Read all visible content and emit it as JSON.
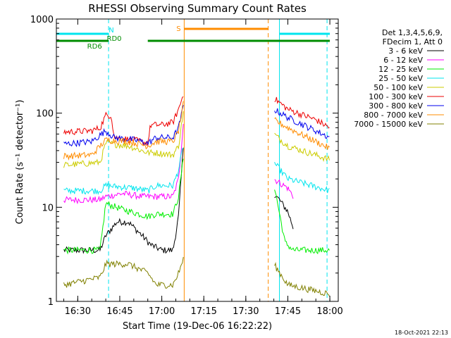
{
  "chart_data": {
    "type": "line",
    "title": "RHESSI Observing Summary Count Rates",
    "xlabel": "Start Time (19-Dec-06 16:22:22)",
    "ylabel": "Count Rate (s⁻¹ detector⁻¹)",
    "y_scale": "log",
    "xlim": [
      "16:22:22",
      "18:03:00"
    ],
    "ylim": [
      1,
      1000
    ],
    "x_ticks": [
      "16:30",
      "16:45",
      "17:00",
      "17:15",
      "17:30",
      "17:45",
      "18:00"
    ],
    "y_ticks": [
      "1",
      "10",
      "100",
      "1000"
    ],
    "legend_header": [
      "Det 1,3,4,5,6,9,",
      "FDecim 1, Att 0"
    ],
    "legend_position": "right",
    "timestamp": "18-Oct-2021 22:13",
    "flags": [
      {
        "label": "N",
        "color": "#00e5ee",
        "segments": [
          [
            "16:22:22",
            "16:41:00"
          ],
          [
            "17:42:00",
            "18:00:00"
          ]
        ]
      },
      {
        "label": "S",
        "color": "#ff8c00",
        "segments": [
          [
            "17:08:00",
            "17:38:00"
          ]
        ]
      },
      {
        "label": "RD0",
        "color": "#008c00",
        "segments": [
          [
            "16:22:22",
            "16:41:00"
          ],
          [
            "16:55:00",
            "18:00:00"
          ]
        ]
      },
      {
        "label": "RD6",
        "color": "#008c00",
        "segments": [
          [
            "16:22:22",
            "16:55:00"
          ]
        ]
      }
    ],
    "vertical_markers": [
      {
        "time": "16:41:00",
        "color": "#00e5ee",
        "style": "dashed"
      },
      {
        "time": "17:08:00",
        "color": "#ff8c00",
        "style": "solid"
      },
      {
        "time": "17:38:00",
        "color": "#ff8c00",
        "style": "dashed"
      },
      {
        "time": "17:42:00",
        "color": "#00e5ee",
        "style": "solid"
      },
      {
        "time": "17:59:00",
        "color": "#00e5ee",
        "style": "dashed"
      }
    ],
    "data_gap": [
      "17:08:00",
      "17:40:00"
    ],
    "series": [
      {
        "name": "3 - 6 keV",
        "color": "#000000",
        "points": [
          [
            "16:25",
            3.5
          ],
          [
            "16:38",
            3.5
          ],
          [
            "16:40",
            5
          ],
          [
            "16:44",
            7
          ],
          [
            "16:48",
            7
          ],
          [
            "16:53",
            5
          ],
          [
            "16:56",
            4
          ],
          [
            "17:00",
            3.5
          ],
          [
            "17:04",
            3.5
          ],
          [
            "17:06",
            8
          ],
          [
            "17:08",
            60
          ],
          [
            "17:40",
            14
          ],
          [
            "17:42",
            12
          ],
          [
            "17:45",
            9
          ],
          [
            "17:47",
            6
          ]
        ]
      },
      {
        "name": "6 - 12 keV",
        "color": "#ff00ff",
        "points": [
          [
            "16:25",
            12
          ],
          [
            "16:38",
            12
          ],
          [
            "16:40",
            13
          ],
          [
            "16:46",
            14
          ],
          [
            "16:53",
            13
          ],
          [
            "16:56",
            13
          ],
          [
            "17:00",
            13
          ],
          [
            "17:04",
            13
          ],
          [
            "17:06",
            20
          ],
          [
            "17:08",
            100
          ],
          [
            "17:40",
            20
          ],
          [
            "17:45",
            16
          ],
          [
            "17:47",
            13
          ]
        ]
      },
      {
        "name": "12 - 25 keV",
        "color": "#00ee00",
        "points": [
          [
            "16:25",
            3.5
          ],
          [
            "16:38",
            3.5
          ],
          [
            "16:40",
            11
          ],
          [
            "16:46",
            9.5
          ],
          [
            "16:55",
            8
          ],
          [
            "16:58",
            8.5
          ],
          [
            "17:04",
            8.5
          ],
          [
            "17:06",
            13
          ],
          [
            "17:08",
            40
          ],
          [
            "17:40",
            18
          ],
          [
            "17:44",
            4.2
          ],
          [
            "17:47",
            3.5
          ],
          [
            "18:00",
            3.5
          ]
        ]
      },
      {
        "name": "25 - 50 keV",
        "color": "#00e5ee",
        "points": [
          [
            "16:25",
            15
          ],
          [
            "16:38",
            15
          ],
          [
            "16:40",
            17
          ],
          [
            "16:50",
            16
          ],
          [
            "16:55",
            15
          ],
          [
            "16:58",
            17
          ],
          [
            "17:04",
            17
          ],
          [
            "17:06",
            25
          ],
          [
            "17:08",
            50
          ],
          [
            "17:40",
            30
          ],
          [
            "17:45",
            20
          ],
          [
            "18:00",
            15
          ]
        ]
      },
      {
        "name": "50 - 100 keV",
        "color": "#cccc00",
        "points": [
          [
            "16:25",
            28
          ],
          [
            "16:38",
            30
          ],
          [
            "16:40",
            48
          ],
          [
            "16:48",
            45
          ],
          [
            "16:55",
            38
          ],
          [
            "16:58",
            38
          ],
          [
            "17:04",
            36
          ],
          [
            "17:06",
            45
          ],
          [
            "17:08",
            120
          ],
          [
            "17:40",
            60
          ],
          [
            "17:45",
            45
          ],
          [
            "18:00",
            32
          ]
        ]
      },
      {
        "name": "100 - 300 keV",
        "color": "#ee0000",
        "points": [
          [
            "16:25",
            63
          ],
          [
            "16:35",
            65
          ],
          [
            "16:38",
            70
          ],
          [
            "16:40",
            95
          ],
          [
            "16:42",
            95
          ],
          [
            "16:43",
            55
          ],
          [
            "16:50",
            52
          ],
          [
            "16:55",
            48
          ],
          [
            "16:56",
            75
          ],
          [
            "17:00",
            75
          ],
          [
            "17:04",
            80
          ],
          [
            "17:06",
            110
          ],
          [
            "17:08",
            170
          ],
          [
            "17:40",
            145
          ],
          [
            "17:45",
            110
          ],
          [
            "17:55",
            85
          ],
          [
            "18:00",
            70
          ]
        ]
      },
      {
        "name": "300 - 800 keV",
        "color": "#0000ee",
        "points": [
          [
            "16:25",
            47
          ],
          [
            "16:35",
            50
          ],
          [
            "16:40",
            65
          ],
          [
            "16:43",
            55
          ],
          [
            "16:50",
            52
          ],
          [
            "16:55",
            48
          ],
          [
            "16:58",
            55
          ],
          [
            "17:04",
            55
          ],
          [
            "17:06",
            70
          ],
          [
            "17:08",
            130
          ],
          [
            "17:40",
            110
          ],
          [
            "17:45",
            90
          ],
          [
            "17:55",
            65
          ],
          [
            "18:00",
            55
          ]
        ]
      },
      {
        "name": "800 - 7000 keV",
        "color": "#ff8c00",
        "points": [
          [
            "16:25",
            35
          ],
          [
            "16:35",
            36
          ],
          [
            "16:40",
            52
          ],
          [
            "16:48",
            50
          ],
          [
            "16:55",
            45
          ],
          [
            "16:58",
            50
          ],
          [
            "17:04",
            50
          ],
          [
            "17:06",
            65
          ],
          [
            "17:08",
            140
          ],
          [
            "17:40",
            85
          ],
          [
            "17:45",
            70
          ],
          [
            "17:55",
            50
          ],
          [
            "18:00",
            42
          ]
        ]
      },
      {
        "name": "7000 - 15000 keV",
        "color": "#808000",
        "points": [
          [
            "16:25",
            1.5
          ],
          [
            "16:38",
            1.8
          ],
          [
            "16:40",
            2.5
          ],
          [
            "16:48",
            2.5
          ],
          [
            "16:55",
            2
          ],
          [
            "16:58",
            1.5
          ],
          [
            "17:04",
            1.5
          ],
          [
            "17:06",
            2
          ],
          [
            "17:08",
            3
          ],
          [
            "17:40",
            2.5
          ],
          [
            "17:45",
            1.5
          ],
          [
            "18:00",
            1.2
          ]
        ]
      }
    ]
  }
}
